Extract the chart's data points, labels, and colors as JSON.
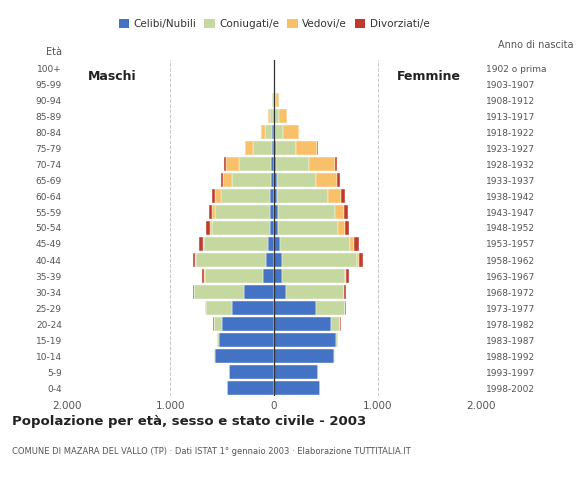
{
  "age_groups": [
    "0-4",
    "5-9",
    "10-14",
    "15-19",
    "20-24",
    "25-29",
    "30-34",
    "35-39",
    "40-44",
    "45-49",
    "50-54",
    "55-59",
    "60-64",
    "65-69",
    "70-74",
    "75-79",
    "80-84",
    "85-89",
    "90-94",
    "95-99",
    "100+"
  ],
  "birth_years": [
    "1998-2002",
    "1993-1997",
    "1988-1992",
    "1983-1987",
    "1978-1982",
    "1973-1977",
    "1968-1972",
    "1963-1967",
    "1958-1962",
    "1953-1957",
    "1948-1952",
    "1943-1947",
    "1938-1942",
    "1933-1937",
    "1928-1932",
    "1923-1927",
    "1918-1922",
    "1913-1917",
    "1908-1912",
    "1903-1907",
    "1902 o prima"
  ],
  "male_celibe": [
    450,
    430,
    570,
    530,
    500,
    410,
    290,
    110,
    75,
    60,
    40,
    35,
    35,
    30,
    30,
    20,
    15,
    8,
    5,
    0,
    0
  ],
  "male_coniugato": [
    0,
    5,
    10,
    20,
    80,
    250,
    480,
    560,
    680,
    620,
    560,
    530,
    480,
    380,
    310,
    180,
    70,
    30,
    10,
    0,
    0
  ],
  "male_vedovo": [
    0,
    0,
    0,
    0,
    0,
    5,
    5,
    5,
    5,
    10,
    20,
    30,
    50,
    80,
    120,
    80,
    40,
    20,
    5,
    0,
    0
  ],
  "male_divorziato": [
    0,
    0,
    0,
    0,
    5,
    5,
    10,
    20,
    25,
    30,
    35,
    35,
    30,
    25,
    20,
    5,
    5,
    5,
    0,
    0,
    0
  ],
  "female_celibe": [
    440,
    420,
    580,
    600,
    550,
    400,
    120,
    80,
    80,
    60,
    40,
    35,
    30,
    25,
    20,
    15,
    10,
    8,
    5,
    0,
    0
  ],
  "female_coniugato": [
    0,
    5,
    10,
    20,
    90,
    280,
    550,
    600,
    720,
    670,
    580,
    550,
    490,
    380,
    320,
    200,
    80,
    35,
    10,
    0,
    0
  ],
  "female_vedovo": [
    0,
    0,
    0,
    0,
    0,
    5,
    5,
    10,
    20,
    40,
    60,
    90,
    130,
    200,
    250,
    200,
    150,
    80,
    30,
    5,
    0
  ],
  "female_divorziato": [
    0,
    0,
    0,
    0,
    5,
    5,
    15,
    35,
    40,
    45,
    40,
    35,
    35,
    30,
    20,
    5,
    5,
    5,
    0,
    0,
    0
  ],
  "color_celibe": "#4472c4",
  "color_coniugato": "#c5d8a0",
  "color_vedovo": "#f9c06a",
  "color_divorziato": "#c0392b",
  "title": "Popolazione per età, sesso e stato civile - 2003",
  "subtitle": "COMUNE DI MAZARA DEL VALLO (TP) · Dati ISTAT 1° gennaio 2003 · Elaborazione TUTTITALIA.IT",
  "xlim": 2000,
  "background_color": "#ffffff",
  "grid_color": "#c8c8c8"
}
